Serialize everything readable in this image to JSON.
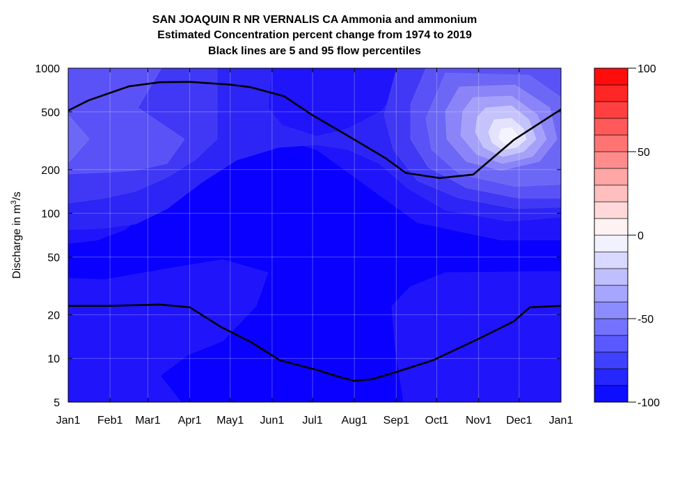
{
  "chart_data": {
    "type": "heatmap",
    "title_lines": [
      "SAN JOAQUIN R NR VERNALIS CA  Ammonia and ammonium",
      "Estimated Concentration percent change from 1974 to 2019",
      "Black lines are 5 and 95 flow percentiles"
    ],
    "ylabel_prefix": "Discharge in m",
    "ylabel_sup": "3",
    "ylabel_suffix": "/s",
    "x_tick_labels": [
      "Jan1",
      "Feb1",
      "Mar1",
      "Apr1",
      "May1",
      "Jun1",
      "Jul1",
      "Aug1",
      "Sep1",
      "Oct1",
      "Nov1",
      "Dec1",
      "Jan1"
    ],
    "x_tick_days": [
      0,
      31,
      59,
      90,
      120,
      151,
      181,
      212,
      243,
      273,
      304,
      334,
      365
    ],
    "x_range_days": [
      0,
      365
    ],
    "y_scale": "log",
    "y_range": [
      5,
      1000
    ],
    "y_tick_values": [
      5,
      10,
      20,
      50,
      100,
      200,
      500,
      1000
    ],
    "y_tick_labels": [
      "5",
      "10",
      "20",
      "50",
      "100",
      "200",
      "500",
      "1000"
    ],
    "grid": true,
    "colorbar": {
      "range": [
        -100,
        100
      ],
      "step": 10,
      "tick_values": [
        100,
        50,
        0,
        -50,
        -100
      ],
      "tick_labels": [
        "100",
        "50",
        "0",
        "-50",
        "-100"
      ]
    },
    "percentile_lines": [
      {
        "percentile": 95,
        "points": [
          [
            0,
            510
          ],
          [
            15,
            600
          ],
          [
            45,
            750
          ],
          [
            68,
            800
          ],
          [
            90,
            805
          ],
          [
            120,
            770
          ],
          [
            135,
            740
          ],
          [
            160,
            640
          ],
          [
            180,
            480
          ],
          [
            210,
            330
          ],
          [
            235,
            240
          ],
          [
            250,
            190
          ],
          [
            275,
            175
          ],
          [
            300,
            185
          ],
          [
            330,
            320
          ],
          [
            365,
            520
          ]
        ]
      },
      {
        "percentile": 5,
        "points": [
          [
            0,
            23
          ],
          [
            30,
            23
          ],
          [
            68,
            23.5
          ],
          [
            90,
            22.5
          ],
          [
            113,
            16.5
          ],
          [
            135,
            13
          ],
          [
            157,
            9.7
          ],
          [
            185,
            8.3
          ],
          [
            200,
            7.5
          ],
          [
            212,
            7
          ],
          [
            225,
            7.2
          ],
          [
            242,
            8
          ],
          [
            270,
            9.7
          ],
          [
            303,
            13.5
          ],
          [
            330,
            18
          ],
          [
            342,
            22.5
          ],
          [
            365,
            23
          ]
        ]
      }
    ]
  }
}
